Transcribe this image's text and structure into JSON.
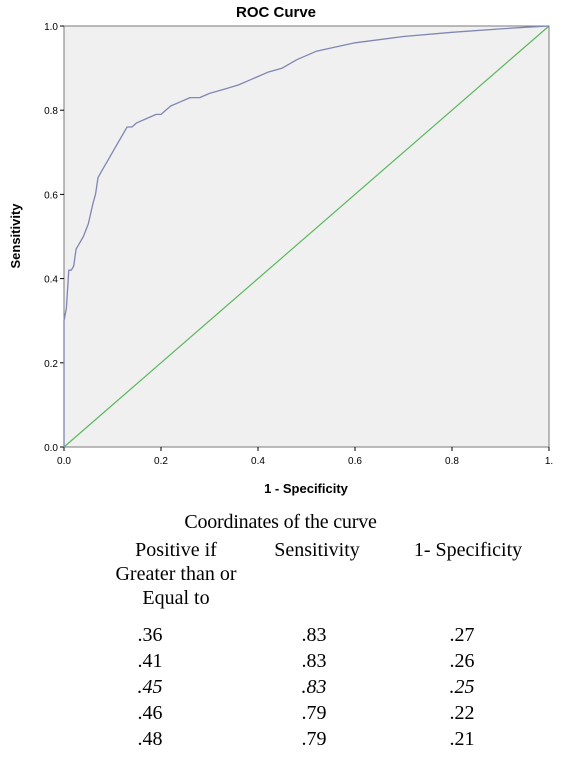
{
  "chart_data": {
    "type": "line",
    "title": "ROC Curve",
    "xlabel": "1 - Specificity",
    "ylabel": "Sensitivity",
    "xlim": [
      0,
      1
    ],
    "ylim": [
      0,
      1
    ],
    "x_ticks": [
      "0.0",
      "0.2",
      "0.4",
      "0.6",
      "0.8",
      "1."
    ],
    "y_ticks": [
      "0.0",
      "0.2",
      "0.4",
      "0.6",
      "0.8",
      "1.0"
    ],
    "grid": false,
    "legend": "none",
    "colors": {
      "curve": "#7f86b3",
      "reference": "#5cb85c",
      "plot_background": "#f0f0f0"
    },
    "series": [
      {
        "x": [
          0,
          0,
          0.005,
          0.01,
          0.015,
          0.02,
          0.025,
          0.03,
          0.04,
          0.05,
          0.06,
          0.065,
          0.07,
          0.08,
          0.09,
          0.1,
          0.11,
          0.12,
          0.125,
          0.13,
          0.14,
          0.15,
          0.17,
          0.19,
          0.2,
          0.22,
          0.24,
          0.26,
          0.28,
          0.3,
          0.33,
          0.36,
          0.38,
          0.4,
          0.42,
          0.45,
          0.48,
          0.52,
          0.6,
          0.7,
          0.8,
          0.9,
          0.95,
          1.0
        ],
        "y": [
          0,
          0.3,
          0.33,
          0.42,
          0.42,
          0.43,
          0.47,
          0.48,
          0.5,
          0.53,
          0.58,
          0.6,
          0.64,
          0.66,
          0.68,
          0.7,
          0.72,
          0.74,
          0.75,
          0.76,
          0.76,
          0.77,
          0.78,
          0.79,
          0.79,
          0.81,
          0.82,
          0.83,
          0.83,
          0.84,
          0.85,
          0.86,
          0.87,
          0.88,
          0.89,
          0.9,
          0.92,
          0.94,
          0.96,
          0.975,
          0.985,
          0.993,
          0.997,
          1.0
        ]
      },
      {
        "x": [
          0,
          1
        ],
        "y": [
          0,
          1
        ]
      }
    ]
  },
  "table": {
    "title": "Coordinates of the curve",
    "headers": {
      "threshold": [
        "Positive if",
        "Greater than or",
        "Equal to"
      ],
      "sensitivity": "Sensitivity",
      "specificity": "1- Specificity"
    },
    "rows": [
      {
        "threshold": ".36",
        "sensitivity": ".83",
        "specificity": ".27",
        "emphasized": false
      },
      {
        "threshold": ".41",
        "sensitivity": ".83",
        "specificity": ".26",
        "emphasized": false
      },
      {
        "threshold": ".45",
        "sensitivity": ".83",
        "specificity": ".25",
        "emphasized": true
      },
      {
        "threshold": ".46",
        "sensitivity": ".79",
        "specificity": ".22",
        "emphasized": false
      },
      {
        "threshold": ".48",
        "sensitivity": ".79",
        "specificity": ".21",
        "emphasized": false
      }
    ]
  }
}
